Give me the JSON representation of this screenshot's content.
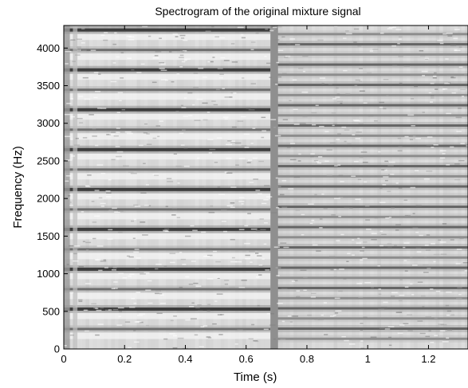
{
  "chart_data": {
    "type": "heatmap",
    "title": "Spectrogram of the original mixture signal",
    "xlabel": "Time (s)",
    "ylabel": "Frequency (Hz)",
    "xlim": [
      0,
      1.33
    ],
    "ylim": [
      0,
      4300
    ],
    "x_ticks": [
      0,
      0.2,
      0.4,
      0.6,
      0.8,
      1,
      1.2
    ],
    "x_tick_labels": [
      "0",
      "0.2",
      "0.4",
      "0.6",
      "0.8",
      "1",
      "1.2"
    ],
    "y_ticks": [
      0,
      500,
      1000,
      1500,
      2000,
      2500,
      3000,
      3500,
      4000
    ],
    "y_tick_labels": [
      "0",
      "500",
      "1000",
      "1500",
      "2000",
      "2500",
      "3000",
      "3500",
      "4000"
    ],
    "colormap": "grayscale (dark = high energy)",
    "segments": [
      {
        "t_start": 0,
        "t_end": 0.68,
        "fundamental_hz": 265,
        "description": "first note harmonics"
      },
      {
        "t_start": 0.7,
        "t_end": 1.33,
        "fundamental_hz": 135,
        "description": "second note harmonics"
      }
    ],
    "onset_time": 0.68,
    "grid": false
  }
}
